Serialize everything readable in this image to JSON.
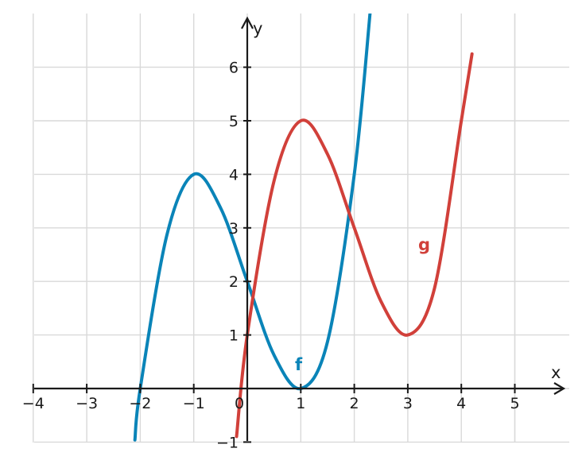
{
  "chart_data": {
    "type": "line",
    "title": "",
    "xlabel": "x",
    "ylabel": "y",
    "xlim": [
      -4,
      5.9
    ],
    "ylim": [
      -1,
      6.9
    ],
    "grid": true,
    "x_ticks": [
      -4,
      -3,
      -2,
      -1,
      0,
      1,
      2,
      3,
      4,
      5
    ],
    "y_ticks": [
      -1,
      1,
      2,
      3,
      4,
      5,
      6
    ],
    "x_tick_labels": [
      "−4",
      "−3",
      "−2",
      "−1",
      "0",
      "1",
      "2",
      "3",
      "4",
      "5"
    ],
    "y_tick_labels": [
      "−1",
      "1",
      "2",
      "3",
      "4",
      "5",
      "6"
    ],
    "series": [
      {
        "name": "f",
        "color": "#0a84b8",
        "x": [
          -2.1,
          -2,
          -1.5,
          -1,
          -0.5,
          0,
          0.5,
          1,
          1.5,
          2,
          2.3
        ],
        "y": [
          -0.96,
          0,
          2.875,
          4,
          3.375,
          2,
          0.625,
          0,
          0.875,
          4,
          7.067
        ]
      },
      {
        "name": "g",
        "color": "#d1403a",
        "x": [
          -0.2,
          0,
          0.5,
          1,
          1.5,
          2,
          2.5,
          3,
          3.5,
          4,
          4.2
        ],
        "y": [
          -0.896,
          1,
          3.875,
          5,
          4.375,
          3,
          1.625,
          1,
          1.875,
          5,
          6.248
        ]
      }
    ]
  }
}
